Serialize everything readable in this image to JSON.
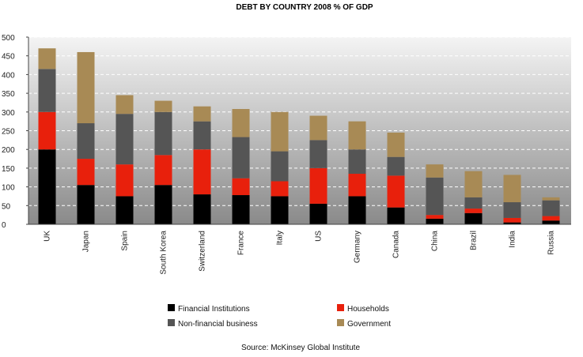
{
  "chart_data": {
    "type": "bar",
    "stacked": true,
    "title": "DEBT BY COUNTRY 2008 % OF GDP",
    "xlabel": "",
    "ylabel": "",
    "ylim": [
      0,
      500
    ],
    "yticks": [
      0,
      50,
      100,
      150,
      200,
      250,
      300,
      350,
      400,
      450,
      500
    ],
    "grid": true,
    "legend_position": "bottom",
    "categories": [
      "UK",
      "Japan",
      "Spain",
      "South Korea",
      "Switzerland",
      "France",
      "Italy",
      "US",
      "Germany",
      "Canada",
      "China",
      "Brazil",
      "India",
      "Russia"
    ],
    "series": [
      {
        "name": "Financial Institutions",
        "color": "#000000",
        "values": [
          200,
          105,
          75,
          105,
          80,
          78,
          75,
          55,
          75,
          45,
          15,
          30,
          5,
          10
        ]
      },
      {
        "name": "Households",
        "color": "#e8200c",
        "values": [
          100,
          70,
          85,
          80,
          120,
          45,
          40,
          95,
          60,
          85,
          10,
          12,
          12,
          12
        ]
      },
      {
        "name": "Non-financial business",
        "color": "#555555",
        "values": [
          115,
          95,
          135,
          115,
          75,
          110,
          80,
          75,
          65,
          50,
          100,
          30,
          42,
          42
        ]
      },
      {
        "name": "Government",
        "color": "#a88a55",
        "values": [
          55,
          190,
          50,
          30,
          40,
          75,
          105,
          65,
          75,
          65,
          35,
          70,
          73,
          8
        ]
      }
    ],
    "source": "Source: McKinsey Global Institute"
  }
}
